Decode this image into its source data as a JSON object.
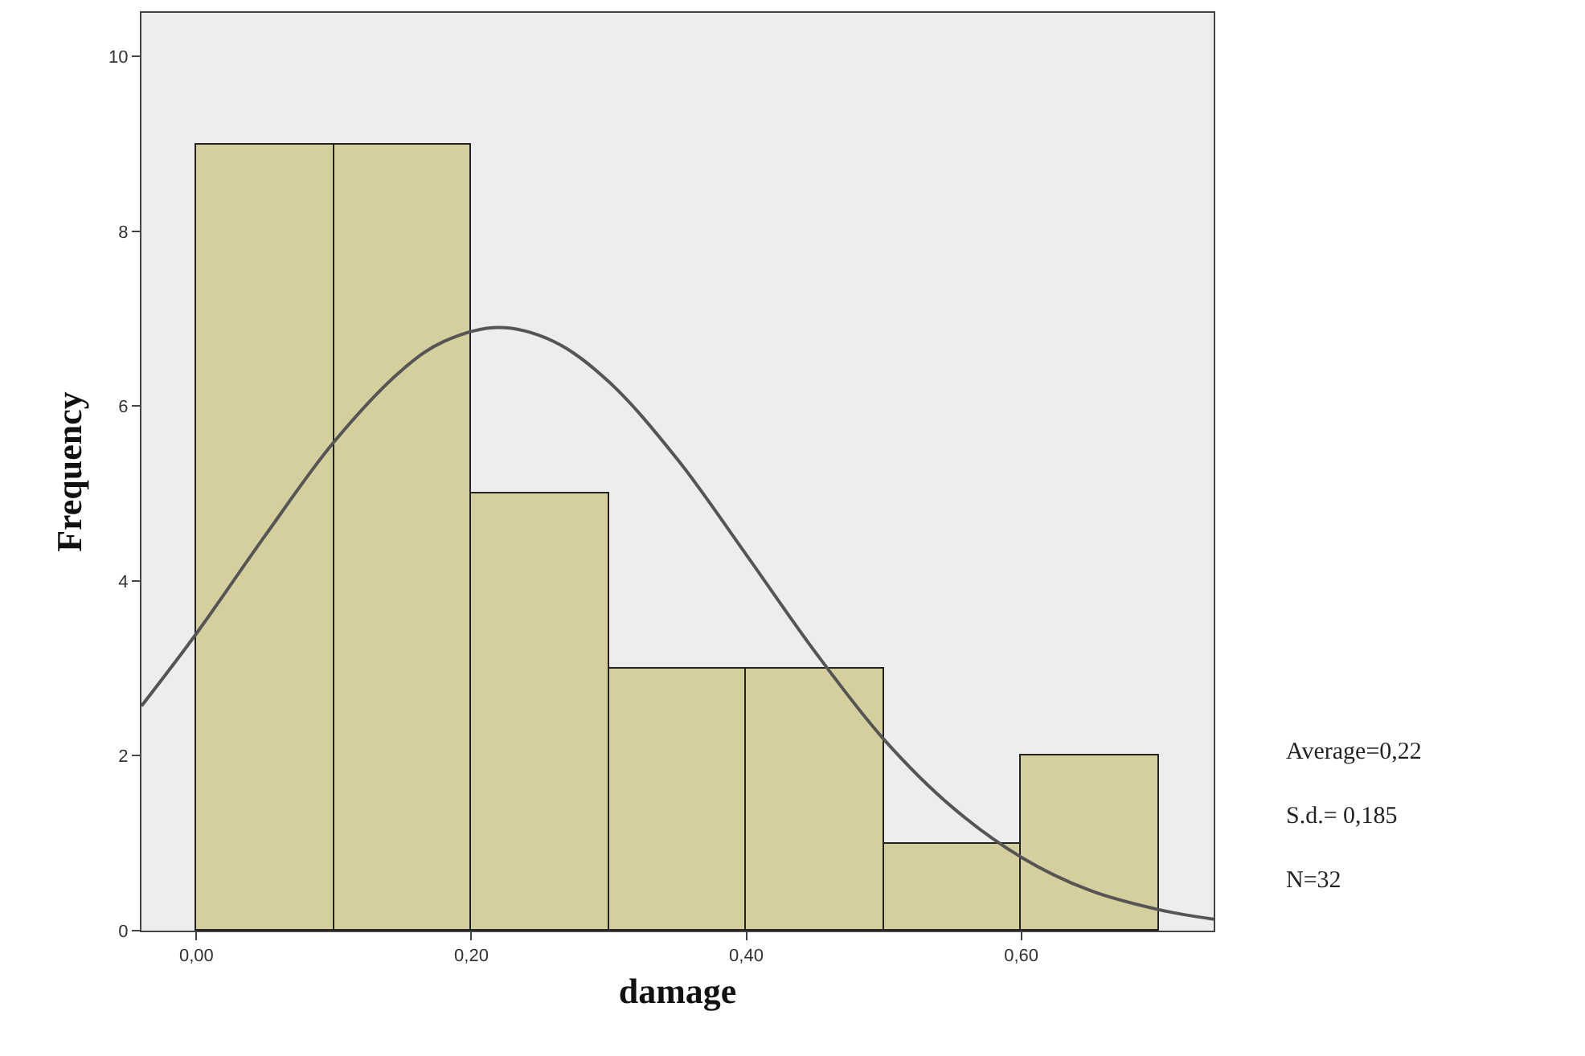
{
  "chart_data": {
    "type": "histogram",
    "xlabel": "damage",
    "ylabel": "Frequency",
    "bins": [
      0,
      0.1,
      0.2,
      0.3,
      0.4,
      0.5,
      0.6,
      0.7
    ],
    "values": [
      9,
      9,
      5,
      3,
      3,
      1,
      2
    ],
    "color": "#d4cf9c",
    "series": [
      {
        "type": "line",
        "color": "#555555",
        "x": [
          -0.04,
          0,
          0.05,
          0.1,
          0.15,
          0.18,
          0.22,
          0.26,
          0.3,
          0.35,
          0.4,
          0.45,
          0.5,
          0.55,
          0.6,
          0.65,
          0.7,
          0.74
        ],
        "values": [
          2.57,
          3.4,
          4.52,
          5.59,
          6.42,
          6.74,
          6.9,
          6.74,
          6.28,
          5.39,
          4.3,
          3.19,
          2.19,
          1.41,
          0.84,
          0.46,
          0.24,
          0.13
        ]
      }
    ],
    "xlim": [
      -0.04,
      0.74
    ],
    "xticks": [
      {
        "value": 0,
        "label": "0,00"
      },
      {
        "value": 0.2,
        "label": "0,20"
      },
      {
        "value": 0.4,
        "label": "0,40"
      },
      {
        "value": 0.6,
        "label": "0,60"
      }
    ],
    "ylim": [
      0,
      10.5
    ],
    "yticks": [
      0,
      2,
      4,
      6,
      8,
      10
    ],
    "grid": false,
    "annotations": [
      "Average=0,22",
      "S.d.= 0,185",
      "N=32"
    ]
  }
}
